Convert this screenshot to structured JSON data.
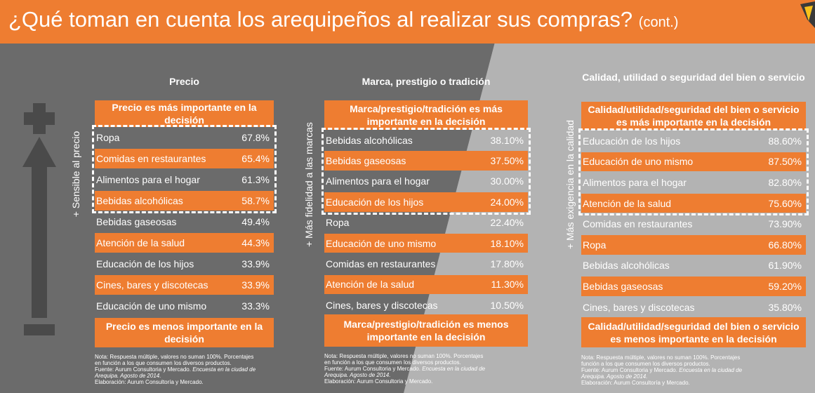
{
  "title": "¿Qué toman en cuenta los arequipeños al realizar sus compras?",
  "title_suffix": "(cont.)",
  "panels": [
    {
      "side_label": "+ Sensible al precio",
      "heading": "Precio",
      "header": "Precio es más importante en la decisión",
      "rows": [
        [
          "Ropa",
          "67.8%"
        ],
        [
          "Comidas en restaurantes",
          "65.4%"
        ],
        [
          "Alimentos para el hogar",
          "61.3%"
        ],
        [
          "Bebidas alcohólicas",
          "58.7%"
        ],
        [
          "Bebidas gaseosas",
          "49.4%"
        ],
        [
          "Atención de la salud",
          "44.3%"
        ],
        [
          "Educación de los hijos",
          "33.9%"
        ],
        [
          "Cines, bares y discotecas",
          "33.9%"
        ],
        [
          "Educación de uno mismo",
          "33.3%"
        ]
      ],
      "footer": "Precio es menos importante en la decisión",
      "note": [
        "Nota: Respuesta múltiple, valores no suman 100%. Porcentajes",
        "en función a los que consumen los diversos productos.",
        "Fuente: Aurum Consultoria y Mercado. ",
        "Encuesta en la ciudad de",
        "Arequipa. Agosto de 2014.",
        "Elaboración: Aurum Consultoría y Mercado."
      ]
    },
    {
      "side_label": "+ Más fidelidad a las marcas",
      "heading": "Marca, prestigio o tradición",
      "header": "Marca/prestigio/tradición es más importante en la decisión",
      "rows": [
        [
          "Bebidas alcohólicas",
          "38.10%"
        ],
        [
          "Bebidas gaseosas",
          "37.50%"
        ],
        [
          "Alimentos para el hogar",
          "30.00%"
        ],
        [
          "Educación de los hijos",
          "24.00%"
        ],
        [
          "Ropa",
          "22.40%"
        ],
        [
          "Educación de uno mismo",
          "18.10%"
        ],
        [
          "Comidas en restaurantes",
          "17.80%"
        ],
        [
          "Atención de la salud",
          "11.30%"
        ],
        [
          "Cines, bares y discotecas",
          "10.50%"
        ]
      ],
      "footer": "Marca/prestigio/tradición es menos importante en la decisión",
      "note": [
        "Nota: Respuesta múltiple, valores no suman 100%. Porcentajes",
        "en función a los que consumen los diversos productos.",
        "Fuente: Aurum Consultoria y Mercado. ",
        "Encuesta en la ciudad de",
        "Arequipa. Agosto de 2014.",
        "Elaboración: Aurum Consultoria y Mercado."
      ]
    },
    {
      "side_label": "+ Más exigencia en la calidad",
      "heading": "Calidad, utilidad o seguridad del bien o servicio",
      "header": "Calidad/utilidad/seguridad del bien o servicio es más importante en la decisión",
      "rows": [
        [
          "Educación de los hijos",
          "88.60%"
        ],
        [
          "Educación de uno mismo",
          "87.50%"
        ],
        [
          "Alimentos para el hogar",
          "82.80%"
        ],
        [
          "Atención de la salud",
          "75.60%"
        ],
        [
          "Comidas en restaurantes",
          "73.90%"
        ],
        [
          "Ropa",
          "66.80%"
        ],
        [
          "Bebidas alcohólicas",
          "61.90%"
        ],
        [
          "Bebidas gaseosas",
          "59.20%"
        ],
        [
          "Cines, bares y discotecas",
          "35.80%"
        ]
      ],
      "footer": "Calidad/utilidad/seguridad del bien o servicio es menos importante en la decisión",
      "note": [
        "Nota: Respuesta múltiple, valores no suman 100%. Porcentajes",
        "función a los que consumen los diversos productos.",
        "Fuente: Aurum Consultoria y Mercado. ",
        "Encuesta en la ciudad de",
        "Arequipa. Agosto de 2014.",
        "Elaboración: Aurum Consultoría y Mercado."
      ]
    }
  ]
}
